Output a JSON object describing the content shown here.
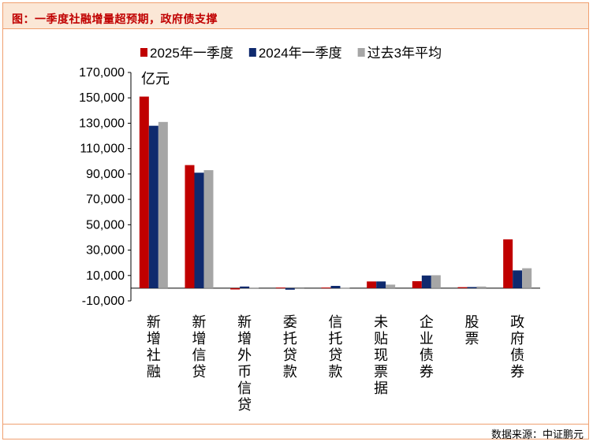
{
  "figure": {
    "title": "图：一季度社融增量超预期，政府债支撑",
    "source": "数据来源：中证鹏元"
  },
  "chart_data": {
    "type": "bar",
    "unit_label": "亿元",
    "categories": [
      "新增社融",
      "新增信贷",
      "新增外币信贷",
      "委托贷款",
      "信托贷款",
      "未贴现票据",
      "企业债券",
      "股票",
      "政府债券"
    ],
    "series": [
      {
        "name": "2025年一季度",
        "color": "#c00000",
        "values": [
          151000,
          97000,
          -1000,
          500,
          500,
          5300,
          5500,
          800,
          38500
        ]
      },
      {
        "name": "2024年一季度",
        "color": "#0f2a6e",
        "values": [
          128000,
          91000,
          1300,
          -1200,
          1800,
          5300,
          10000,
          900,
          14000
        ]
      },
      {
        "name": "过去3年平均",
        "color": "#a6a6a6",
        "values": [
          131000,
          93000,
          500,
          -200,
          400,
          2800,
          10200,
          1300,
          15700
        ]
      }
    ],
    "yticks": [
      -10000,
      10000,
      30000,
      50000,
      70000,
      90000,
      110000,
      130000,
      150000,
      170000
    ],
    "ytick_labels": [
      "-10,000",
      "10,000",
      "30,000",
      "50,000",
      "70,000",
      "90,000",
      "110,000",
      "130,000",
      "150,000",
      "170,000"
    ],
    "ylim": [
      -10000,
      170000
    ],
    "legend_position": "top",
    "grid": false
  }
}
